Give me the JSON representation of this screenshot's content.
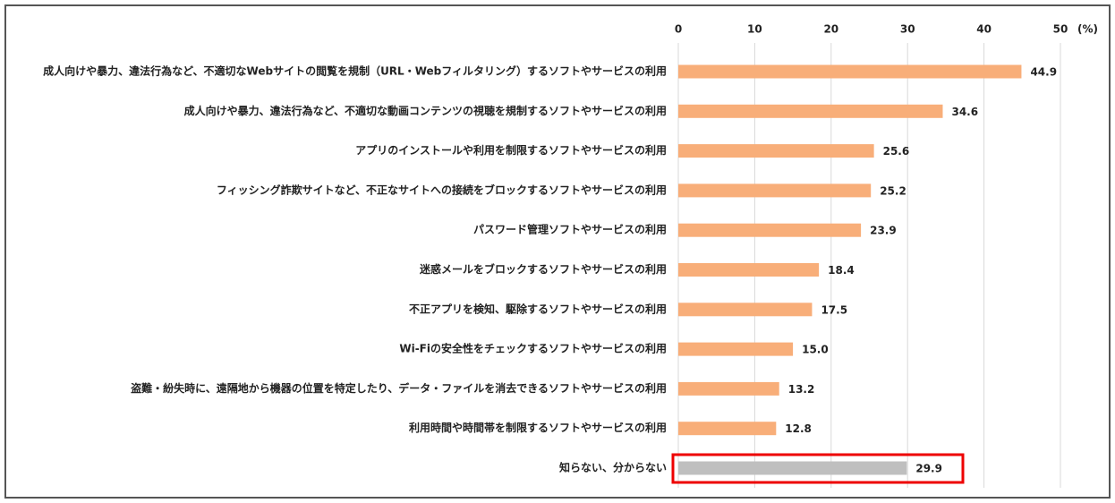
{
  "chart_data": {
    "type": "barh",
    "categories": [
      "成人向けや暴力、違法行為など、不適切なWebサイトの閲覧を規制（URL・Webフィルタリング）するソフトやサービスの利用",
      "成人向けや暴力、違法行為など、不適切な動画コンテンツの視聴を規制するソフトやサービスの利用",
      "アプリのインストールや利用を制限するソフトやサービスの利用",
      "フィッシング詐欺サイトなど、不正なサイトへの接続をブロックするソフトやサービスの利用",
      "パスワード管理ソフトやサービスの利用",
      "迷惑メールをブロックするソフトやサービスの利用",
      "不正アプリを検知、駆除するソフトやサービスの利用",
      "Wi-Fiの安全性をチェックするソフトやサービスの利用",
      "盗難・紛失時に、遠隔地から機器の位置を特定したり、データ・ファイルを消去できるソフトやサービスの利用",
      "利用時間や時間帯を制限するソフトやサービスの利用",
      "知らない、分からない"
    ],
    "values": [
      44.9,
      34.6,
      25.6,
      25.2,
      23.9,
      18.4,
      17.5,
      15.0,
      13.2,
      12.8,
      29.9
    ],
    "value_labels": [
      "44.9",
      "34.6",
      "25.6",
      "25.2",
      "23.9",
      "18.4",
      "17.5",
      "15.0",
      "13.2",
      "12.8",
      "29.9"
    ],
    "colors": [
      "#f8ae79",
      "#f8ae79",
      "#f8ae79",
      "#f8ae79",
      "#f8ae79",
      "#f8ae79",
      "#f8ae79",
      "#f8ae79",
      "#f8ae79",
      "#f8ae79",
      "#bfbfbf"
    ],
    "unit": "(%)",
    "xlim": [
      0,
      50
    ],
    "xticks": [
      0,
      10,
      20,
      30,
      40,
      50
    ],
    "grid": true
  }
}
